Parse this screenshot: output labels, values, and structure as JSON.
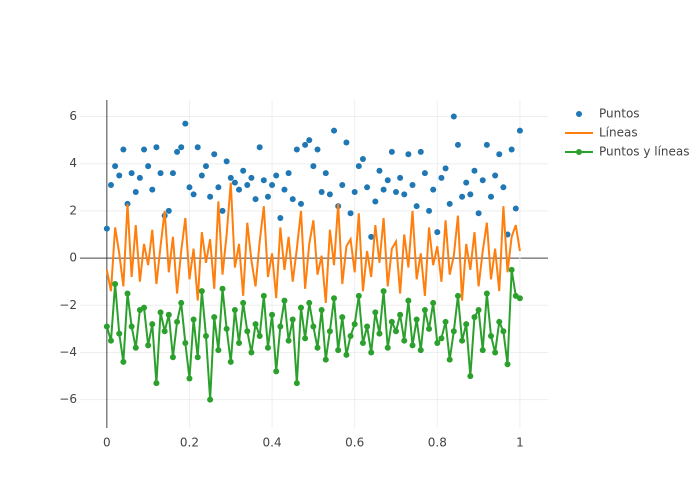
{
  "chart_data": {
    "type": "line",
    "x": [
      0,
      0.01,
      0.02,
      0.03,
      0.04,
      0.05,
      0.06,
      0.07,
      0.08,
      0.09,
      0.1,
      0.11,
      0.12,
      0.13,
      0.14,
      0.15,
      0.16,
      0.17,
      0.18,
      0.19,
      0.2,
      0.21,
      0.22,
      0.23,
      0.24,
      0.25,
      0.26,
      0.27,
      0.28,
      0.29,
      0.3,
      0.31,
      0.32,
      0.33,
      0.34,
      0.35,
      0.36,
      0.37,
      0.38,
      0.39,
      0.4,
      0.41,
      0.42,
      0.43,
      0.44,
      0.45,
      0.46,
      0.47,
      0.48,
      0.49,
      0.5,
      0.51,
      0.52,
      0.53,
      0.54,
      0.55,
      0.56,
      0.57,
      0.58,
      0.59,
      0.6,
      0.61,
      0.62,
      0.63,
      0.64,
      0.65,
      0.66,
      0.67,
      0.68,
      0.69,
      0.7,
      0.71,
      0.72,
      0.73,
      0.74,
      0.75,
      0.76,
      0.77,
      0.78,
      0.79,
      0.8,
      0.81,
      0.82,
      0.83,
      0.84,
      0.85,
      0.86,
      0.87,
      0.88,
      0.89,
      0.9,
      0.91,
      0.92,
      0.93,
      0.94,
      0.95,
      0.96,
      0.97,
      0.98,
      0.99,
      1
    ],
    "series": [
      {
        "name": "Puntos",
        "mode": "markers",
        "color": "#1f77b4",
        "values": [
          1.25,
          3.1,
          3.9,
          3.5,
          4.6,
          2.3,
          3.6,
          2.8,
          3.4,
          4.6,
          3.9,
          2.9,
          4.7,
          3.6,
          1.8,
          2.0,
          3.6,
          4.5,
          4.7,
          5.7,
          3.0,
          2.7,
          4.7,
          3.5,
          3.9,
          2.6,
          4.4,
          3.0,
          2.0,
          4.1,
          3.4,
          3.2,
          2.9,
          3.7,
          3.1,
          3.4,
          2.5,
          4.7,
          3.3,
          2.6,
          3.1,
          3.5,
          1.7,
          2.9,
          3.6,
          2.5,
          4.6,
          2.3,
          4.8,
          5.0,
          3.9,
          4.6,
          2.8,
          3.6,
          2.7,
          5.4,
          2.2,
          3.1,
          4.9,
          1.9,
          2.8,
          3.9,
          4.2,
          3.0,
          0.9,
          2.4,
          3.7,
          2.9,
          3.3,
          4.5,
          2.8,
          3.4,
          2.7,
          4.4,
          3.1,
          2.2,
          4.5,
          3.6,
          2.0,
          2.9,
          1.1,
          3.4,
          3.8,
          2.3,
          6.0,
          4.8,
          2.6,
          3.2,
          2.7,
          3.7,
          1.9,
          3.3,
          4.8,
          2.6,
          3.5,
          4.4,
          3.0,
          1.0,
          4.6,
          2.1,
          5.4
        ]
      },
      {
        "name": "Líneas",
        "mode": "lines",
        "color": "#ff7f0e",
        "values": [
          -0.5,
          -1.4,
          1.3,
          0.2,
          -1.2,
          2.3,
          -0.8,
          1.4,
          -1.0,
          0.6,
          -0.3,
          1.2,
          -1.1,
          0.5,
          2.0,
          -0.6,
          0.9,
          -1.5,
          0.3,
          1.7,
          -0.9,
          0.4,
          -1.8,
          1.1,
          -0.2,
          0.8,
          -1.3,
          2.4,
          -0.7,
          1.0,
          3.2,
          -0.4,
          0.6,
          -1.6,
          1.5,
          -0.1,
          -1.2,
          0.7,
          2.2,
          -0.8,
          0.2,
          -1.7,
          1.3,
          -0.5,
          0.9,
          -1.0,
          0.4,
          2.0,
          -1.3,
          0.6,
          1.6,
          -0.7,
          0.1,
          -1.9,
          1.2,
          -0.3,
          2.3,
          -1.1,
          0.5,
          0.8,
          -0.6,
          1.9,
          -1.4,
          0.3,
          -0.8,
          1.4,
          -0.2,
          1.7,
          -1.2,
          0.4,
          0.7,
          -1.5,
          1.0,
          -0.4,
          2.0,
          -0.9,
          0.2,
          -1.6,
          1.3,
          -0.3,
          0.5,
          -1.0,
          1.6,
          -0.7,
          0.1,
          1.8,
          -1.8,
          0.6,
          -0.5,
          1.1,
          -1.2,
          0.3,
          1.5,
          -0.9,
          0.4,
          -1.4,
          2.2,
          -0.6,
          0.9,
          1.4,
          0.3
        ]
      },
      {
        "name": "Puntos y líneas",
        "mode": "lines+markers",
        "color": "#2ca02c",
        "values": [
          -2.9,
          -3.5,
          -1.1,
          -3.2,
          -4.4,
          -1.5,
          -2.9,
          -3.8,
          -2.2,
          -2.1,
          -3.7,
          -2.8,
          -5.3,
          -2.3,
          -3.1,
          -2.4,
          -4.2,
          -2.7,
          -1.9,
          -3.6,
          -5.1,
          -2.6,
          -4.2,
          -1.4,
          -3.3,
          -6.0,
          -2.5,
          -3.9,
          -1.3,
          -3.0,
          -4.4,
          -2.2,
          -3.6,
          -1.9,
          -3.1,
          -4.0,
          -2.8,
          -3.3,
          -1.6,
          -3.8,
          -2.4,
          -4.8,
          -2.9,
          -1.8,
          -3.5,
          -2.6,
          -5.3,
          -2.1,
          -3.4,
          -1.9,
          -2.9,
          -3.8,
          -2.2,
          -4.3,
          -3.1,
          -1.7,
          -3.9,
          -2.5,
          -4.1,
          -3.3,
          -2.8,
          -1.6,
          -3.6,
          -2.9,
          -4.0,
          -2.3,
          -3.2,
          -1.4,
          -3.8,
          -2.7,
          -3.1,
          -2.4,
          -3.5,
          -1.8,
          -3.7,
          -2.6,
          -3.9,
          -2.2,
          -3.0,
          -1.9,
          -3.6,
          -3.4,
          -2.7,
          -4.3,
          -3.1,
          -1.6,
          -3.5,
          -2.8,
          -5.0,
          -2.5,
          -2.2,
          -3.9,
          -1.5,
          -3.3,
          -4.0,
          -2.7,
          -3.1,
          -4.5,
          -0.5,
          -1.6,
          -1.7
        ]
      }
    ],
    "xlim": [
      -0.065,
      1.068
    ],
    "ylim": [
      -7.2,
      6.7
    ],
    "xticks": [
      0,
      0.2,
      0.4,
      0.6,
      0.8,
      1
    ],
    "yticks": [
      {
        "value": -6,
        "label": "−6"
      },
      {
        "value": -4,
        "label": "−4"
      },
      {
        "value": -2,
        "label": "−2"
      },
      0,
      2,
      4,
      6
    ],
    "grid": true,
    "legend": "right"
  }
}
